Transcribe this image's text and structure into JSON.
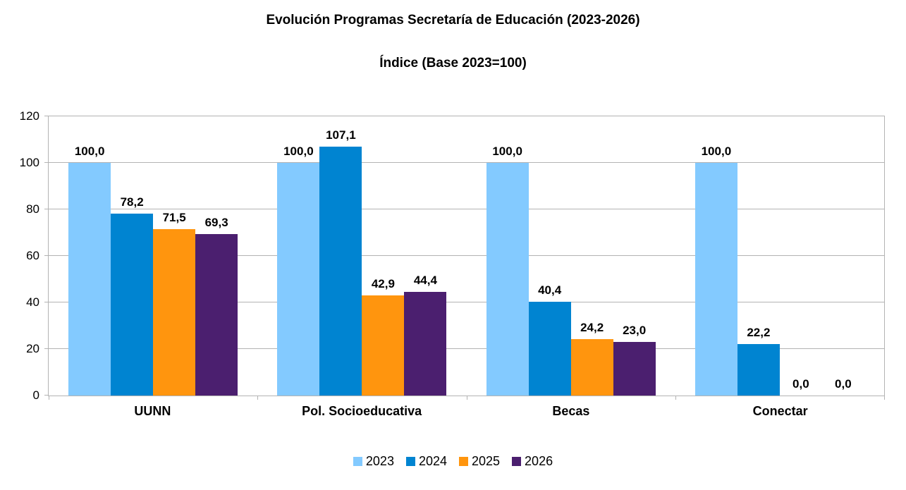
{
  "title": "Evolución Programas Secretaría de Educación (2023-2026)",
  "subtitle": "Índice (Base 2023=100)",
  "chart_data": {
    "type": "bar",
    "title": "Evolución Programas Secretaría de Educación (2023-2026)",
    "subtitle": "Índice (Base 2023=100)",
    "categories": [
      "UUNN",
      "Pol. Socioeducativa",
      "Becas",
      "Conectar"
    ],
    "series": [
      {
        "name": "2023",
        "color": "#83CAFF",
        "values": [
          100.0,
          100.0,
          100.0,
          100.0
        ],
        "labels": [
          "100,0",
          "100,0",
          "100,0",
          "100,0"
        ]
      },
      {
        "name": "2024",
        "color": "#0084D1",
        "values": [
          78.2,
          107.1,
          40.4,
          22.2
        ],
        "labels": [
          "78,2",
          "107,1",
          "40,4",
          "22,2"
        ]
      },
      {
        "name": "2025",
        "color": "#FF950E",
        "values": [
          71.5,
          42.9,
          24.2,
          0.0
        ],
        "labels": [
          "71,5",
          "42,9",
          "24,2",
          "0,0"
        ]
      },
      {
        "name": "2026",
        "color": "#4B1F6F",
        "values": [
          69.3,
          44.4,
          23.0,
          0.0
        ],
        "labels": [
          "69,3",
          "44,4",
          "23,0",
          "0,0"
        ]
      }
    ],
    "xlabel": "",
    "ylabel": "",
    "ylim": [
      0,
      120
    ],
    "yticks": [
      0,
      20,
      40,
      60,
      80,
      100,
      120
    ],
    "grid": true,
    "legend_position": "bottom",
    "colors": {
      "gridline": "#b3b3b3",
      "text": "#000000",
      "background": "#ffffff"
    }
  }
}
